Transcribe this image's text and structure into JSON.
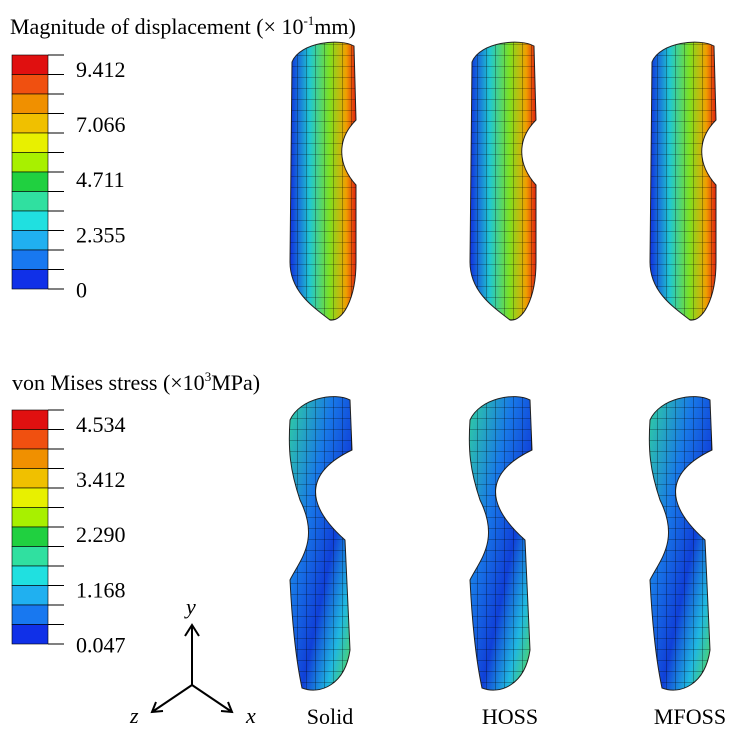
{
  "legends": [
    {
      "title": {
        "prefix": "Magnitude of displacement (× 10",
        "sup": "-1",
        "suffix": "mm)"
      },
      "labels": [
        "9.412",
        "7.066",
        "4.711",
        "2.355",
        "0"
      ]
    },
    {
      "title": {
        "prefix": "von Mises stress (×10",
        "sup": "3",
        "suffix": "MPa)"
      },
      "labels": [
        "4.534",
        "3.412",
        "2.290",
        "1.168",
        "0.047"
      ]
    }
  ],
  "axes": {
    "y": "y",
    "z": "z",
    "x": "x"
  },
  "models": [
    "Solid",
    "HOSS",
    "MFOSS"
  ]
}
